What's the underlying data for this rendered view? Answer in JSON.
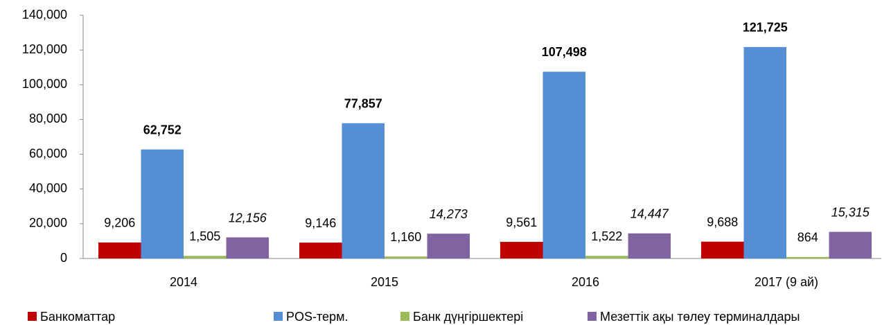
{
  "chart_data": {
    "type": "bar",
    "categories": [
      "2014",
      "2015",
      "2016",
      "2017 (9 ай)"
    ],
    "series": [
      {
        "name": "Банкоматтар",
        "color": "#c00000",
        "label_style": "normal",
        "values": [
          9206,
          9146,
          9561,
          9688
        ],
        "value_labels": [
          "9,206",
          "9,146",
          "9,561",
          "9,688"
        ]
      },
      {
        "name": "POS-терм.",
        "color": "#558ed5",
        "label_style": "bold",
        "values": [
          62752,
          77857,
          107498,
          121725
        ],
        "value_labels": [
          "62,752",
          "77,857",
          "107,498",
          "121,725"
        ]
      },
      {
        "name": "Банк дүңгіршектері",
        "color": "#9bbb59",
        "label_style": "normal",
        "values": [
          1505,
          1160,
          1522,
          864
        ],
        "value_labels": [
          "1,505",
          "1,160",
          "1,522",
          "864"
        ]
      },
      {
        "name": "Мезеттік ақы төлеу терминалдары",
        "color": "#8064a2",
        "label_style": "italic",
        "values": [
          12156,
          14273,
          14447,
          15315
        ],
        "value_labels": [
          "12,156",
          "14,273",
          "14,447",
          "15,315"
        ]
      }
    ],
    "ylim": [
      0,
      140000
    ],
    "yticks": [
      0,
      {
        "value": 20000,
        "label": "20,000"
      },
      {
        "value": 40000,
        "label": "40,000"
      },
      {
        "value": 60000,
        "label": "60,000"
      },
      {
        "value": 80000,
        "label": "80,000"
      },
      {
        "value": 100000,
        "label": "100,000"
      },
      {
        "value": 120000,
        "label": "120,000"
      },
      {
        "value": 140000,
        "label": "140,000"
      }
    ],
    "grid": false,
    "legend": "bottom"
  }
}
